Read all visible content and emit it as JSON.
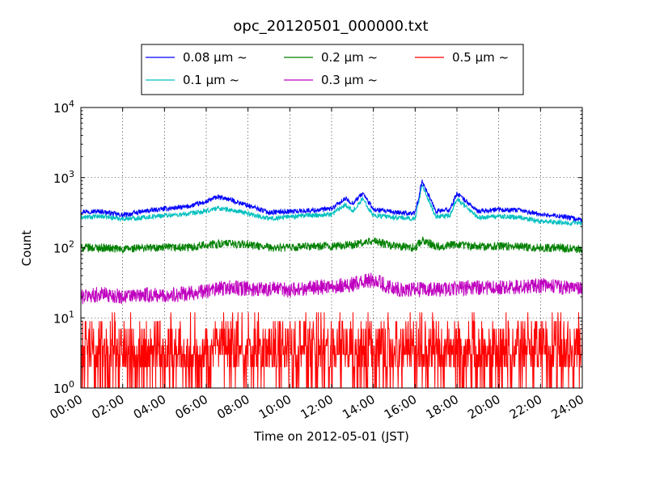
{
  "chart_data": {
    "type": "line",
    "title": "opc_20120501_000000.txt",
    "xlabel": "Time on 2012-05-01 (JST)",
    "ylabel": "Count",
    "yscale": "log",
    "ylim": [
      1,
      10000
    ],
    "xlim": [
      "00:00",
      "24:00"
    ],
    "grid": true,
    "legend_placement": "top-center",
    "x_ticks": [
      "00:00",
      "02:00",
      "04:00",
      "06:00",
      "08:00",
      "10:00",
      "12:00",
      "14:00",
      "16:00",
      "18:00",
      "20:00",
      "22:00",
      "24:00"
    ],
    "y_ticks": [
      {
        "value": 1,
        "base": "10",
        "exp": "0"
      },
      {
        "value": 10,
        "base": "10",
        "exp": "1"
      },
      {
        "value": 100,
        "base": "10",
        "exp": "2"
      },
      {
        "value": 1000,
        "base": "10",
        "exp": "3"
      },
      {
        "value": 10000,
        "base": "10",
        "exp": "4"
      }
    ],
    "series": [
      {
        "name": "0.08 μm ~",
        "color": "#0000ff",
        "x": [
          "00:00",
          "01:00",
          "02:00",
          "03:00",
          "04:00",
          "05:00",
          "06:00",
          "06:30",
          "07:00",
          "08:00",
          "09:00",
          "10:00",
          "11:00",
          "12:00",
          "12:40",
          "13:00",
          "13:30",
          "14:00",
          "15:00",
          "16:00",
          "16:20",
          "17:00",
          "17:40",
          "18:00",
          "19:00",
          "20:00",
          "21:00",
          "22:00",
          "23:00",
          "24:00"
        ],
        "values": [
          330,
          330,
          290,
          330,
          360,
          380,
          450,
          530,
          500,
          400,
          320,
          330,
          340,
          360,
          500,
          430,
          600,
          350,
          320,
          310,
          900,
          330,
          350,
          600,
          330,
          350,
          340,
          300,
          280,
          250
        ]
      },
      {
        "name": "0.1 μm ~",
        "color": "#00bfbf",
        "x": [
          "00:00",
          "01:00",
          "02:00",
          "03:00",
          "04:00",
          "05:00",
          "06:00",
          "06:30",
          "07:00",
          "08:00",
          "09:00",
          "10:00",
          "11:00",
          "12:00",
          "12:40",
          "13:00",
          "13:30",
          "14:00",
          "15:00",
          "16:00",
          "16:20",
          "17:00",
          "17:40",
          "18:00",
          "19:00",
          "20:00",
          "21:00",
          "22:00",
          "23:00",
          "24:00"
        ],
        "values": [
          270,
          280,
          260,
          270,
          290,
          300,
          330,
          370,
          350,
          310,
          260,
          280,
          290,
          300,
          420,
          330,
          500,
          290,
          270,
          260,
          800,
          270,
          290,
          500,
          270,
          280,
          270,
          240,
          230,
          220
        ]
      },
      {
        "name": "0.2 μm ~",
        "color": "#008000",
        "x": [
          "00:00",
          "01:00",
          "02:00",
          "03:00",
          "04:00",
          "05:00",
          "06:00",
          "07:00",
          "08:00",
          "09:00",
          "10:00",
          "11:00",
          "12:00",
          "13:00",
          "14:00",
          "15:00",
          "16:00",
          "16:20",
          "17:00",
          "18:00",
          "19:00",
          "20:00",
          "21:00",
          "22:00",
          "23:00",
          "24:00"
        ],
        "values": [
          100,
          100,
          95,
          100,
          100,
          100,
          110,
          115,
          110,
          100,
          100,
          105,
          105,
          110,
          125,
          105,
          100,
          130,
          105,
          110,
          105,
          105,
          105,
          100,
          100,
          95
        ]
      },
      {
        "name": "0.3 μm ~",
        "color": "#bf00bf",
        "x": [
          "00:00",
          "01:00",
          "02:00",
          "03:00",
          "04:00",
          "05:00",
          "06:00",
          "07:00",
          "08:00",
          "09:00",
          "10:00",
          "11:00",
          "12:00",
          "13:00",
          "14:00",
          "15:00",
          "16:00",
          "17:00",
          "18:00",
          "19:00",
          "20:00",
          "21:00",
          "22:00",
          "23:00",
          "24:00"
        ],
        "values": [
          20,
          22,
          20,
          21,
          21,
          22,
          24,
          27,
          26,
          26,
          25,
          27,
          28,
          30,
          35,
          26,
          25,
          25,
          26,
          27,
          27,
          28,
          29,
          27,
          25
        ]
      },
      {
        "name": "0.5 μm ~",
        "color": "#ff0000",
        "x": [
          "00:00",
          "01:00",
          "02:00",
          "03:00",
          "04:00",
          "05:00",
          "06:00",
          "07:00",
          "08:00",
          "09:00",
          "10:00",
          "11:00",
          "12:00",
          "13:00",
          "14:00",
          "15:00",
          "16:00",
          "17:00",
          "18:00",
          "19:00",
          "20:00",
          "21:00",
          "22:00",
          "23:00",
          "24:00"
        ],
        "values": [
          3,
          3,
          3,
          3,
          3,
          3,
          3,
          3,
          3,
          3,
          3,
          3,
          4,
          4,
          4,
          3,
          3,
          3,
          3,
          3,
          3,
          3,
          4,
          4,
          4
        ]
      }
    ]
  }
}
